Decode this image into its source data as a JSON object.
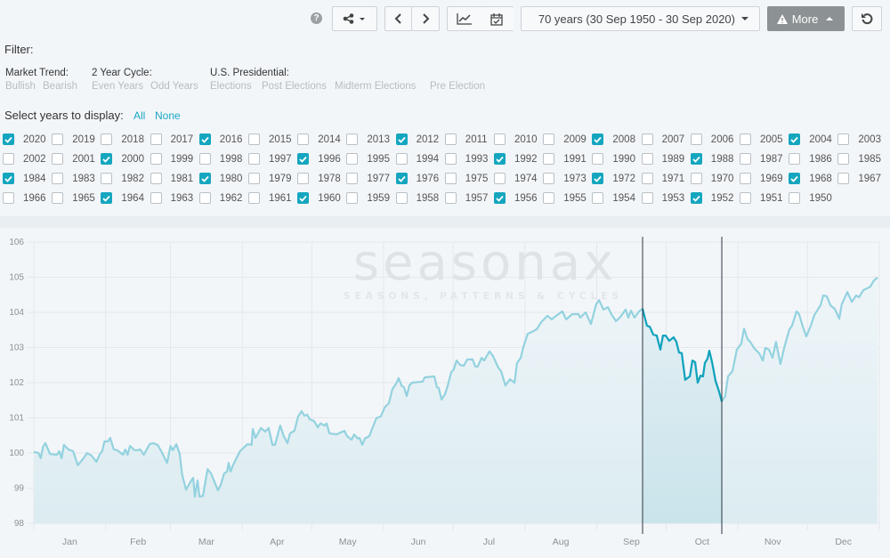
{
  "toolbar": {
    "help_icon": "question-circle-icon",
    "share_icon": "share-icon",
    "range_label": "70 years (30 Sep 1950 - 30 Sep 2020)",
    "more_label": "More",
    "more_icon": "warning-icon",
    "reset_icon": "refresh-icon"
  },
  "filter": {
    "title": "Filter:",
    "groups": [
      {
        "label": "Market Trend:",
        "options": [
          "Bullish",
          "Bearish"
        ]
      },
      {
        "label": "2 Year Cycle:",
        "options": [
          "Even Years",
          "Odd Years"
        ]
      },
      {
        "label": "U.S. Presidential:",
        "options": [
          "Elections",
          "Post Elections",
          "Midterm Elections",
          "Pre Election"
        ]
      }
    ],
    "select_label": "Select years to display:",
    "all_label": "All",
    "none_label": "None"
  },
  "years": {
    "list": [
      2020,
      2019,
      2018,
      2017,
      2016,
      2015,
      2014,
      2013,
      2012,
      2011,
      2010,
      2009,
      2008,
      2007,
      2006,
      2005,
      2004,
      2003,
      2002,
      2001,
      2000,
      1999,
      1998,
      1997,
      1996,
      1995,
      1994,
      1993,
      1992,
      1991,
      1990,
      1989,
      1988,
      1987,
      1986,
      1985,
      1984,
      1983,
      1982,
      1981,
      1980,
      1979,
      1978,
      1977,
      1976,
      1975,
      1974,
      1973,
      1972,
      1971,
      1970,
      1969,
      1968,
      1967,
      1966,
      1965,
      1964,
      1963,
      1962,
      1961,
      1960,
      1959,
      1958,
      1957,
      1956,
      1955,
      1954,
      1953,
      1952,
      1951,
      1950
    ],
    "checked": [
      2020,
      2016,
      2012,
      2008,
      2004,
      2000,
      1996,
      1992,
      1988,
      1984,
      1980,
      1976,
      1972,
      1968,
      1964,
      1960,
      1956,
      1952
    ]
  },
  "colors": {
    "accent": "#15a6bf",
    "line": "#93d2df",
    "line_highlight": "#12a3bd"
  },
  "chart_data": {
    "type": "line",
    "watermark": {
      "brand": "seasonax",
      "tagline": "SEASONS, PATTERNS & CYCLES"
    },
    "ylim": [
      98,
      106
    ],
    "yticks": [
      98,
      99,
      100,
      101,
      102,
      103,
      104,
      105,
      106
    ],
    "xlim": [
      0,
      365
    ],
    "month_starts": [
      0,
      31,
      59,
      90,
      120,
      151,
      181,
      212,
      243,
      273,
      304,
      334,
      365
    ],
    "months": [
      "Jan",
      "Feb",
      "Mar",
      "Apr",
      "May",
      "Jun",
      "Jul",
      "Aug",
      "Sep",
      "Oct",
      "Nov",
      "Dec"
    ],
    "highlight": [
      262.8,
      297
    ],
    "points": [
      [
        0,
        100.03
      ],
      [
        2,
        100.0
      ],
      [
        3,
        99.85
      ],
      [
        4,
        100.18
      ],
      [
        5,
        100.28
      ],
      [
        7,
        99.97
      ],
      [
        10,
        99.95
      ],
      [
        11,
        100.05
      ],
      [
        12,
        99.85
      ],
      [
        13,
        100.23
      ],
      [
        15,
        100.1
      ],
      [
        17,
        100.05
      ],
      [
        19,
        99.65
      ],
      [
        22,
        99.9
      ],
      [
        23,
        100.0
      ],
      [
        25,
        99.92
      ],
      [
        27,
        99.75
      ],
      [
        28.5,
        99.97
      ],
      [
        29.5,
        100.05
      ],
      [
        30.5,
        100.33
      ],
      [
        32,
        100.33
      ],
      [
        33,
        100.43
      ],
      [
        34.5,
        100.1
      ],
      [
        36,
        100.08
      ],
      [
        38.5,
        99.95
      ],
      [
        39.5,
        100.1
      ],
      [
        40.5,
        99.95
      ],
      [
        41.5,
        100.2
      ],
      [
        43.5,
        100.08
      ],
      [
        45,
        100.08
      ],
      [
        46,
        100.1
      ],
      [
        47.5,
        99.95
      ],
      [
        50,
        100.25
      ],
      [
        51.5,
        100.28
      ],
      [
        53.5,
        100.23
      ],
      [
        55,
        100.05
      ],
      [
        57.5,
        99.72
      ],
      [
        59,
        100.2
      ],
      [
        60,
        100.08
      ],
      [
        61.5,
        100.25
      ],
      [
        63,
        99.97
      ],
      [
        64,
        99.39
      ],
      [
        65.7,
        98.96
      ],
      [
        68,
        99.22
      ],
      [
        68.8,
        99.29
      ],
      [
        69.5,
        98.76
      ],
      [
        70.7,
        99.22
      ],
      [
        71.5,
        98.76
      ],
      [
        73,
        98.78
      ],
      [
        75,
        99.54
      ],
      [
        76.5,
        99.42
      ],
      [
        79.5,
        98.94
      ],
      [
        80.7,
        99.09
      ],
      [
        82.2,
        99.42
      ],
      [
        83.4,
        99.47
      ],
      [
        84.1,
        99.72
      ],
      [
        84.9,
        99.47
      ],
      [
        86,
        99.65
      ],
      [
        89,
        100.05
      ],
      [
        92.2,
        100.25
      ],
      [
        94,
        100.23
      ],
      [
        94.5,
        100.68
      ],
      [
        95.7,
        100.43
      ],
      [
        98,
        100.71
      ],
      [
        99.9,
        100.61
      ],
      [
        101.4,
        100.71
      ],
      [
        103,
        100.23
      ],
      [
        104.1,
        100.23
      ],
      [
        106.4,
        100.78
      ],
      [
        107.9,
        100.48
      ],
      [
        109.5,
        100.28
      ],
      [
        110.6,
        100.56
      ],
      [
        112.5,
        100.63
      ],
      [
        114.1,
        101.04
      ],
      [
        115.6,
        101.19
      ],
      [
        116.8,
        101.06
      ],
      [
        118,
        101.09
      ],
      [
        119.1,
        100.96
      ],
      [
        121,
        100.91
      ],
      [
        122.6,
        100.73
      ],
      [
        123.7,
        100.84
      ],
      [
        125.6,
        100.78
      ],
      [
        126.4,
        100.84
      ],
      [
        127.6,
        100.56
      ],
      [
        130.6,
        100.53
      ],
      [
        134.1,
        100.63
      ],
      [
        135.2,
        100.48
      ],
      [
        137.2,
        100.38
      ],
      [
        138.3,
        100.53
      ],
      [
        139.8,
        100.41
      ],
      [
        140.6,
        100.43
      ],
      [
        141.8,
        100.23
      ],
      [
        142.9,
        100.41
      ],
      [
        144.8,
        100.48
      ],
      [
        146,
        100.68
      ],
      [
        147.9,
        100.99
      ],
      [
        149.8,
        101.04
      ],
      [
        151.4,
        101.29
      ],
      [
        153.3,
        101.42
      ],
      [
        154.8,
        101.82
      ],
      [
        156.4,
        101.97
      ],
      [
        157.5,
        102.13
      ],
      [
        158.7,
        101.92
      ],
      [
        159.8,
        101.87
      ],
      [
        161,
        101.62
      ],
      [
        162.1,
        101.92
      ],
      [
        163.3,
        102.0
      ],
      [
        167.9,
        102.03
      ],
      [
        168.7,
        102.15
      ],
      [
        172.9,
        102.18
      ],
      [
        174,
        101.87
      ],
      [
        174.8,
        101.85
      ],
      [
        176,
        101.52
      ],
      [
        177.5,
        101.67
      ],
      [
        178.7,
        101.92
      ],
      [
        180.2,
        102.3
      ],
      [
        181.3,
        102.38
      ],
      [
        182.5,
        102.63
      ],
      [
        184,
        102.51
      ],
      [
        185.6,
        102.48
      ],
      [
        187.1,
        102.66
      ],
      [
        189.4,
        102.66
      ],
      [
        190.6,
        102.46
      ],
      [
        191.7,
        102.46
      ],
      [
        193.3,
        102.71
      ],
      [
        194.4,
        102.63
      ],
      [
        196.7,
        102.89
      ],
      [
        198.2,
        102.76
      ],
      [
        200.5,
        102.43
      ],
      [
        201.7,
        102.33
      ],
      [
        203.6,
        101.92
      ],
      [
        205.5,
        102.1
      ],
      [
        207.5,
        102.0
      ],
      [
        208.6,
        102.56
      ],
      [
        210.2,
        102.71
      ],
      [
        211.3,
        103.01
      ],
      [
        213.2,
        103.39
      ],
      [
        214.8,
        103.44
      ],
      [
        217.1,
        103.52
      ],
      [
        219,
        103.72
      ],
      [
        221.7,
        103.9
      ],
      [
        223.6,
        103.8
      ],
      [
        224.8,
        103.87
      ],
      [
        228.2,
        104.03
      ],
      [
        229.8,
        103.8
      ],
      [
        232.4,
        103.95
      ],
      [
        235.1,
        103.95
      ],
      [
        235.9,
        103.85
      ],
      [
        238.2,
        104.0
      ],
      [
        240.5,
        103.67
      ],
      [
        242.8,
        104.23
      ],
      [
        244,
        104.35
      ],
      [
        245.9,
        104.08
      ],
      [
        247.8,
        104.15
      ],
      [
        249.3,
        103.95
      ],
      [
        251.3,
        103.75
      ],
      [
        253.2,
        103.87
      ],
      [
        255.5,
        104.08
      ],
      [
        256.6,
        103.85
      ],
      [
        257.8,
        104.05
      ],
      [
        259.3,
        103.85
      ],
      [
        261.3,
        104.03
      ],
      [
        262.8,
        104.1
      ],
      [
        264.7,
        103.62
      ],
      [
        265.9,
        103.59
      ],
      [
        267.4,
        103.37
      ],
      [
        268.9,
        103.34
      ],
      [
        270.5,
        102.94
      ],
      [
        271.6,
        103.34
      ],
      [
        272.8,
        103.34
      ],
      [
        274.3,
        103.19
      ],
      [
        276.2,
        103.29
      ],
      [
        277.4,
        103.16
      ],
      [
        278.5,
        102.86
      ],
      [
        279.7,
        102.84
      ],
      [
        281.2,
        102.08
      ],
      [
        283.2,
        102.18
      ],
      [
        284.3,
        102.63
      ],
      [
        285.5,
        102.58
      ],
      [
        286.6,
        102.0
      ],
      [
        287.8,
        102.2
      ],
      [
        288.9,
        102.18
      ],
      [
        289.7,
        102.56
      ],
      [
        290.8,
        102.68
      ],
      [
        291.6,
        102.91
      ],
      [
        292.8,
        102.58
      ],
      [
        294.3,
        102.05
      ],
      [
        295.8,
        101.75
      ],
      [
        297,
        101.47
      ],
      [
        298.5,
        101.62
      ],
      [
        299.7,
        102.18
      ],
      [
        301.6,
        102.33
      ],
      [
        303.5,
        102.94
      ],
      [
        305.4,
        103.11
      ],
      [
        306.6,
        103.54
      ],
      [
        308.1,
        103.24
      ],
      [
        309.3,
        103.16
      ],
      [
        311.2,
        102.96
      ],
      [
        313.1,
        102.84
      ],
      [
        314.7,
        102.63
      ],
      [
        315.8,
        102.99
      ],
      [
        317.4,
        102.94
      ],
      [
        318.9,
        102.71
      ],
      [
        320.4,
        103.16
      ],
      [
        322.3,
        102.53
      ],
      [
        324.3,
        103.09
      ],
      [
        326.2,
        103.52
      ],
      [
        327.3,
        103.62
      ],
      [
        329.3,
        104.03
      ],
      [
        330.4,
        103.95
      ],
      [
        332,
        103.59
      ],
      [
        333.5,
        103.32
      ],
      [
        335.4,
        103.62
      ],
      [
        336.9,
        103.92
      ],
      [
        339.6,
        104.2
      ],
      [
        340.8,
        104.48
      ],
      [
        342.3,
        104.46
      ],
      [
        343.9,
        104.2
      ],
      [
        345.8,
        104.1
      ],
      [
        347.7,
        103.82
      ],
      [
        348.8,
        104.23
      ],
      [
        351.2,
        104.58
      ],
      [
        353.1,
        104.3
      ],
      [
        355,
        104.48
      ],
      [
        356.2,
        104.43
      ],
      [
        358.1,
        104.63
      ],
      [
        361.1,
        104.73
      ],
      [
        362.7,
        104.91
      ],
      [
        364.2,
        104.99
      ]
    ]
  }
}
